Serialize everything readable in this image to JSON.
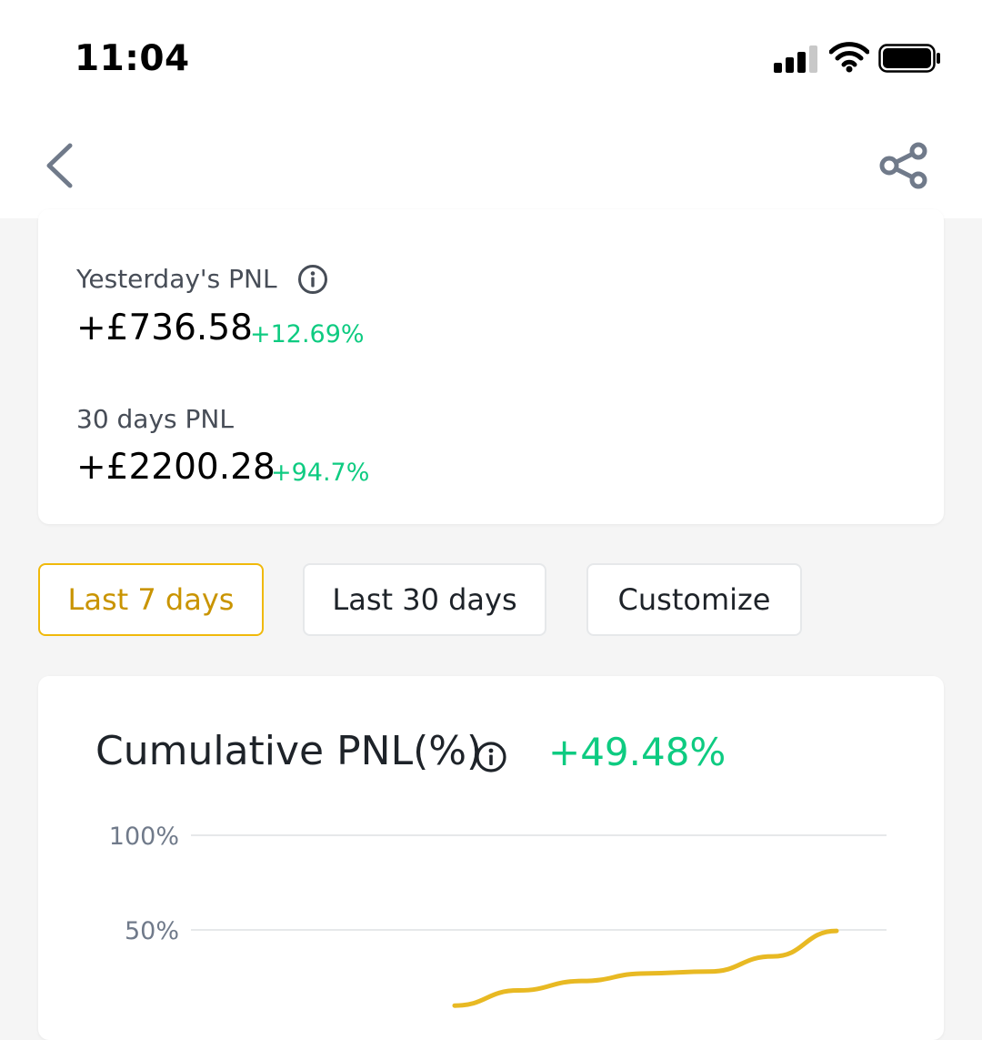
{
  "status_bar": {
    "time": "11:04"
  },
  "nav": {
    "back_icon": "chevron-left-icon",
    "share_icon": "share-icon"
  },
  "summary": {
    "yesterday": {
      "label": "Yesterday's PNL",
      "value": "+£736.58",
      "percent": "+12.69%"
    },
    "thirty_days": {
      "label": "30 days PNL",
      "value": "+£2200.28",
      "percent": "+94.7%"
    }
  },
  "range_tabs": [
    {
      "label": "Last 7 days",
      "selected": true
    },
    {
      "label": "Last 30 days",
      "selected": false
    },
    {
      "label": "Customize",
      "selected": false
    }
  ],
  "chart_card": {
    "title": "Cumulative PNL(%)",
    "total": "+49.48%"
  },
  "colors": {
    "accent": "#f0b90b",
    "positive": "#0ecb81",
    "line": "#e8b923"
  },
  "chart_data": {
    "type": "line",
    "title": "Cumulative PNL(%)",
    "xlabel": "",
    "ylabel": "",
    "y_ticks": [
      "100%",
      "50%"
    ],
    "ylim": [
      0,
      100
    ],
    "grid": true,
    "x": [
      1,
      2,
      3,
      4,
      5,
      6,
      7
    ],
    "series": [
      {
        "values": [
          10,
          18,
          23,
          27,
          28,
          36,
          49.48
        ]
      }
    ]
  }
}
